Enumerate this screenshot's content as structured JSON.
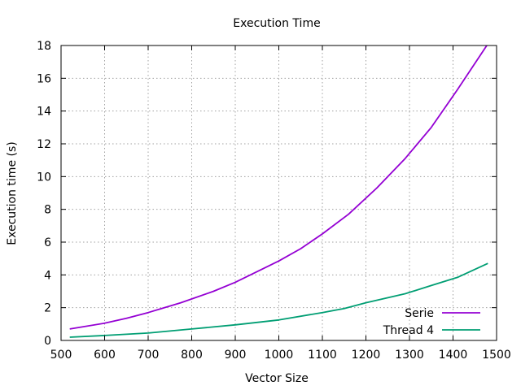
{
  "chart_data": {
    "type": "line",
    "title": "Execution Time",
    "xlabel": "Vector Size",
    "ylabel": "Execution time (s)",
    "xlim": [
      500,
      1500
    ],
    "ylim": [
      0,
      18
    ],
    "xticks": [
      500,
      600,
      700,
      800,
      900,
      1000,
      1100,
      1200,
      1300,
      1400,
      1500
    ],
    "yticks": [
      0,
      2,
      4,
      6,
      8,
      10,
      12,
      14,
      16,
      18
    ],
    "grid": true,
    "legend_position": "bottom-right",
    "series": [
      {
        "name": "Serie",
        "color": "#9400d3",
        "points": [
          [
            520,
            0.7
          ],
          [
            600,
            1.05
          ],
          [
            650,
            1.35
          ],
          [
            700,
            1.7
          ],
          [
            775,
            2.3
          ],
          [
            850,
            3.0
          ],
          [
            900,
            3.55
          ],
          [
            950,
            4.2
          ],
          [
            1000,
            4.85
          ],
          [
            1050,
            5.6
          ],
          [
            1100,
            6.5
          ],
          [
            1160,
            7.7
          ],
          [
            1225,
            9.3
          ],
          [
            1290,
            11.1
          ],
          [
            1350,
            13.0
          ],
          [
            1410,
            15.3
          ],
          [
            1480,
            18.1
          ]
        ]
      },
      {
        "name": "Thread 4",
        "color": "#009e73",
        "points": [
          [
            520,
            0.2
          ],
          [
            600,
            0.3
          ],
          [
            700,
            0.45
          ],
          [
            800,
            0.7
          ],
          [
            900,
            0.95
          ],
          [
            1000,
            1.25
          ],
          [
            1100,
            1.7
          ],
          [
            1150,
            1.95
          ],
          [
            1200,
            2.3
          ],
          [
            1290,
            2.85
          ],
          [
            1350,
            3.35
          ],
          [
            1410,
            3.85
          ],
          [
            1480,
            4.7
          ]
        ]
      }
    ]
  }
}
